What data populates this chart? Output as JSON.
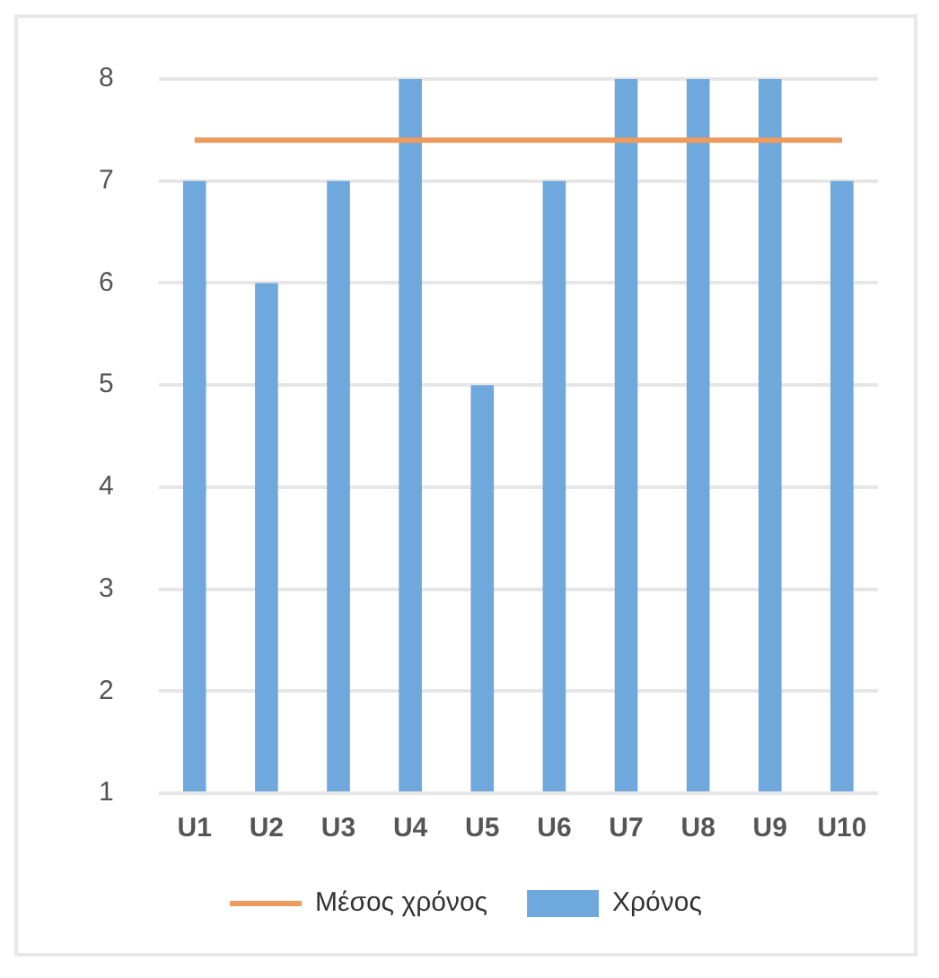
{
  "chart_data": {
    "type": "bar",
    "categories": [
      "U1",
      "U2",
      "U3",
      "U4",
      "U5",
      "U6",
      "U7",
      "U8",
      "U9",
      "U10"
    ],
    "series": [
      {
        "name": "Χρόνος",
        "color": "#6fa8dc",
        "values": [
          7,
          6,
          7,
          8,
          5,
          7,
          8,
          8,
          8,
          7
        ]
      },
      {
        "name": "Μέσος χρόνος",
        "type": "line",
        "color": "#ed9a5e",
        "values": [
          7.4,
          7.4,
          7.4,
          7.4,
          7.4,
          7.4,
          7.4,
          7.4,
          7.4,
          7.4
        ],
        "marker": "none"
      }
    ],
    "ylim": [
      1,
      8
    ],
    "yticks": [
      1,
      2,
      3,
      4,
      5,
      6,
      7,
      8
    ],
    "grid": "y",
    "legend": "bottom"
  }
}
